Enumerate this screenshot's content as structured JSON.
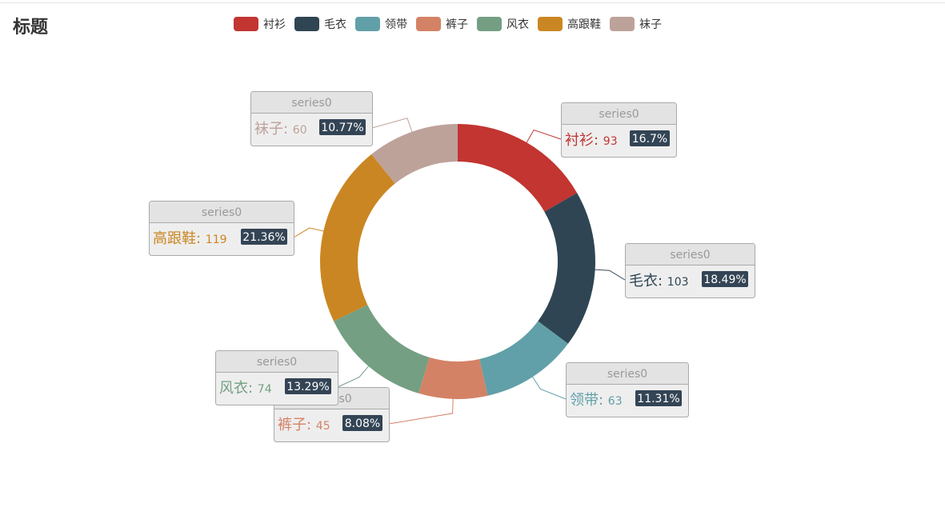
{
  "title": "标题",
  "chart_data": {
    "type": "pie",
    "subtype": "donut",
    "series_name": "series0",
    "categories": [
      "衬衫",
      "毛衣",
      "领带",
      "裤子",
      "风衣",
      "高跟鞋",
      "袜子"
    ],
    "values": [
      93,
      103,
      63,
      45,
      74,
      119,
      60
    ],
    "percent_labels": [
      "16.7%",
      "18.49%",
      "11.31%",
      "8.08%",
      "13.29%",
      "21.36%",
      "10.77%"
    ],
    "colors": [
      "#c23531",
      "#2f4554",
      "#61a0a8",
      "#d48265",
      "#749f83",
      "#ca8622",
      "#bda29a"
    ],
    "legend_position": "top"
  }
}
